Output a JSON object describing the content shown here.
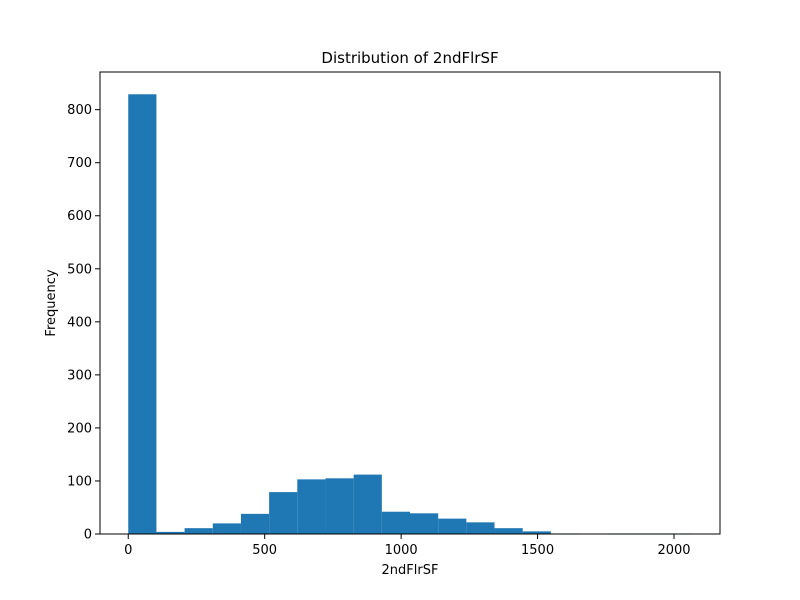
{
  "chart_data": {
    "type": "bar",
    "title": "Distribution of 2ndFlrSF",
    "xlabel": "2ndFlrSF",
    "ylabel": "Frequency",
    "bar_color": "#1f77b4",
    "xlim": [
      -103.5,
      2168.5
    ],
    "ylim": [
      0,
      871
    ],
    "x_ticks": [
      0,
      500,
      1000,
      1500,
      2000
    ],
    "y_ticks": [
      0,
      100,
      200,
      300,
      400,
      500,
      600,
      700,
      800
    ],
    "bin_edges": [
      0,
      103.25,
      206.5,
      309.75,
      413,
      516.25,
      619.5,
      722.75,
      826,
      929.25,
      1032.5,
      1135.75,
      1239,
      1342.25,
      1445.5,
      1548.75,
      1652,
      1755.25,
      1858.5,
      1961.75,
      2065
    ],
    "values": [
      829,
      4,
      11,
      20,
      38,
      79,
      103,
      105,
      112,
      42,
      39,
      29,
      22,
      11,
      5,
      1,
      0,
      1,
      1,
      1
    ],
    "grid": false,
    "legend": "none"
  }
}
